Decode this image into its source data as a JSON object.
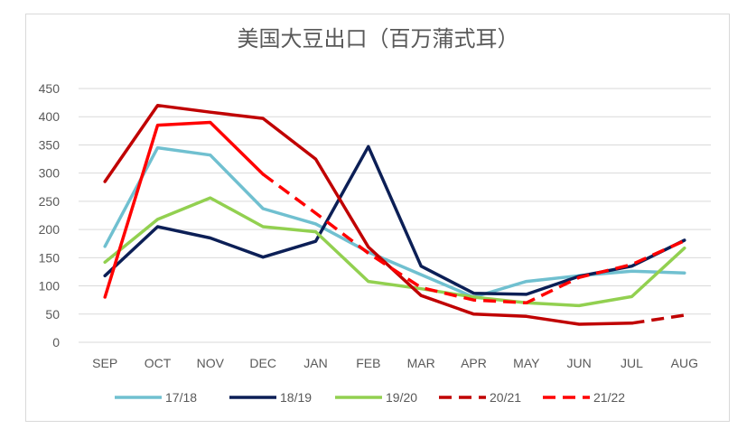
{
  "chart_data": {
    "type": "line",
    "title": "美国大豆出口（百万蒲式耳）",
    "categories": [
      "SEP",
      "OCT",
      "NOV",
      "DEC",
      "JAN",
      "FEB",
      "MAR",
      "APR",
      "MAY",
      "JUN",
      "JUL",
      "AUG"
    ],
    "ylim": [
      0,
      450
    ],
    "yticks": [
      0,
      50,
      100,
      150,
      200,
      250,
      300,
      350,
      400,
      450
    ],
    "grid": true,
    "legend_position": "bottom",
    "series": [
      {
        "name": "17/18",
        "color": "#70C0D0",
        "dash": false,
        "values": [
          170,
          345,
          332,
          237,
          210,
          160,
          120,
          80,
          108,
          118,
          126,
          123
        ]
      },
      {
        "name": "18/19",
        "color": "#0C1F56",
        "dash": false,
        "values": [
          118,
          205,
          185,
          151,
          179,
          347,
          135,
          87,
          85,
          117,
          135,
          181
        ]
      },
      {
        "name": "19/20",
        "color": "#92D050",
        "dash": false,
        "values": [
          142,
          218,
          256,
          205,
          196,
          108,
          95,
          80,
          70,
          65,
          81,
          167
        ]
      },
      {
        "name": "20/21",
        "color": "#C00000",
        "dash": true,
        "solid_until": 10,
        "values": [
          285,
          420,
          408,
          397,
          325,
          169,
          83,
          50,
          46,
          32,
          34,
          48
        ]
      },
      {
        "name": "21/22",
        "color": "#FF0000",
        "dash": true,
        "solid_until": 3,
        "values": [
          80,
          385,
          390,
          298,
          229,
          158,
          97,
          75,
          70,
          115,
          138,
          180
        ]
      }
    ]
  }
}
